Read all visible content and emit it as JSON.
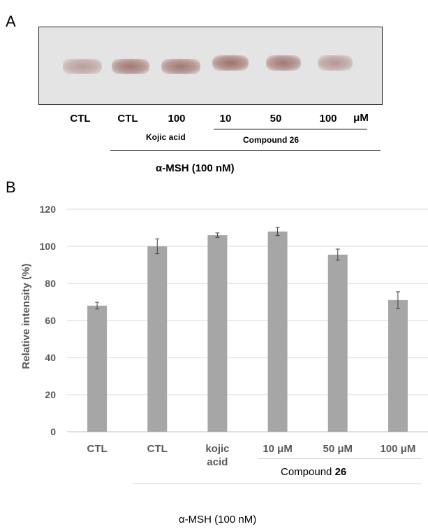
{
  "panelA": {
    "label": "A",
    "lanes": [
      "CTL",
      "CTL",
      "100",
      "10",
      "50",
      "100"
    ],
    "unit": "μM",
    "kojic_label": "Kojic acid",
    "compound_label": "Compound 26",
    "msh_label": "α-MSH (100 nM)",
    "band_intensity": [
      0.55,
      0.85,
      0.85,
      0.9,
      0.85,
      0.6
    ]
  },
  "panelB": {
    "label": "B",
    "bar_color": "#a6a6a6",
    "compound_prefix": "Compound ",
    "compound_number": "26",
    "msh_label": "α-MSH (100 nM)"
  },
  "chart_data": {
    "type": "bar",
    "categories": [
      "CTL",
      "CTL",
      "kojic acid",
      "10 μM",
      "50 μM",
      "100 μM"
    ],
    "category_lines": [
      [
        "CTL"
      ],
      [
        "CTL"
      ],
      [
        "kojic",
        "acid"
      ],
      [
        "10 μM"
      ],
      [
        "50 μM"
      ],
      [
        "100 μM"
      ]
    ],
    "values": [
      68,
      100,
      106,
      108,
      95.5,
      71
    ],
    "errors": [
      1.8,
      4,
      1.2,
      2.2,
      3,
      4.5
    ],
    "ylabel": "Relative intensity (%)",
    "ylim": [
      0,
      120
    ],
    "yticks": [
      "0",
      "20",
      "40",
      "60",
      "80",
      "100",
      "120"
    ],
    "grid": true
  }
}
